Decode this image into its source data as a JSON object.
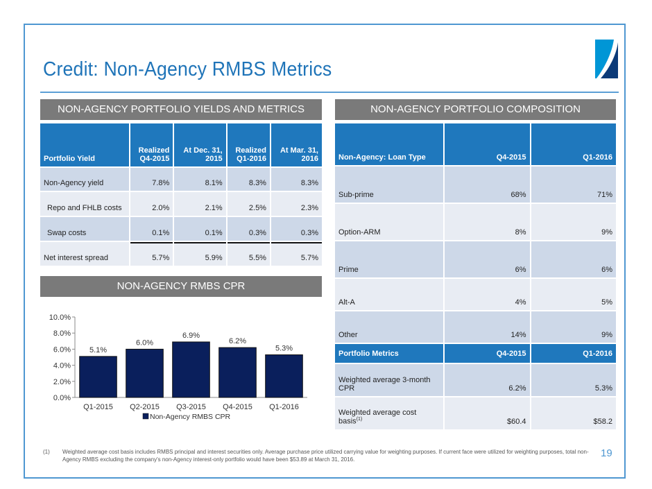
{
  "page": {
    "title": "Credit: Non-Agency RMBS Metrics",
    "page_number": "19",
    "colors": {
      "accent": "#1f74b8",
      "header_blue": "#1f78bd",
      "section_gray": "#7a7a7a",
      "bar_navy": "#0a1f5c",
      "row_dark": "#cdd8e8",
      "row_light": "#e8ecf3"
    }
  },
  "yields": {
    "section_title": "NON-AGENCY PORTFOLIO YIELDS AND METRICS",
    "headers": [
      {
        "line1": "Portfolio Yield",
        "line2": ""
      },
      {
        "line1": "Realized",
        "line2": "Q4-2015"
      },
      {
        "line1": "At Dec. 31,",
        "line2": "2015"
      },
      {
        "line1": "Realized",
        "line2": "Q1-2016"
      },
      {
        "line1": "At Mar. 31,",
        "line2": "2016"
      }
    ],
    "rows": [
      {
        "label": "Non-Agency yield",
        "values": [
          "7.8%",
          "8.1%",
          "8.3%",
          "8.3%"
        ]
      },
      {
        "label": "Repo and FHLB costs",
        "values": [
          "2.0%",
          "2.1%",
          "2.5%",
          "2.3%"
        ]
      },
      {
        "label": "Swap costs",
        "values": [
          "0.1%",
          "0.1%",
          "0.3%",
          "0.3%"
        ]
      },
      {
        "label": "Net interest spread",
        "values": [
          "5.7%",
          "5.9%",
          "5.5%",
          "5.7%"
        ]
      }
    ]
  },
  "composition": {
    "section_title": "NON-AGENCY PORTFOLIO COMPOSITION",
    "headers": [
      "Non-Agency: Loan Type",
      "Q4-2015",
      "Q1-2016"
    ],
    "rows": [
      {
        "label": "Sub-prime",
        "values": [
          "68%",
          "71%"
        ]
      },
      {
        "label": "Option-ARM",
        "values": [
          "8%",
          "9%"
        ]
      },
      {
        "label": "Prime",
        "values": [
          "6%",
          "6%"
        ]
      },
      {
        "label": "Alt-A",
        "values": [
          "4%",
          "5%"
        ]
      },
      {
        "label": "Other",
        "values": [
          "14%",
          "9%"
        ]
      }
    ],
    "metrics_headers": [
      "Portfolio Metrics",
      "Q4-2015",
      "Q1-2016"
    ],
    "metrics_rows": [
      {
        "label": "Weighted average 3-month CPR",
        "sup": "",
        "values": [
          "6.2%",
          "5.3%"
        ]
      },
      {
        "label": "Weighted average cost basis",
        "sup": "(1)",
        "values": [
          "$60.4",
          "$58.2"
        ]
      }
    ]
  },
  "cpr": {
    "section_title": "NON-AGENCY RMBS CPR"
  },
  "chart_data": {
    "type": "bar",
    "title": "NON-AGENCY RMBS CPR",
    "categories": [
      "Q1-2015",
      "Q2-2015",
      "Q3-2015",
      "Q4-2015",
      "Q1-2016"
    ],
    "series": [
      {
        "name": "Non-Agency RMBS CPR",
        "values": [
          5.1,
          6.0,
          6.9,
          6.2,
          5.3
        ],
        "labels": [
          "5.1%",
          "6.0%",
          "6.9%",
          "6.2%",
          "5.3%"
        ],
        "color": "#0a1f5c"
      }
    ],
    "xlabel": "",
    "ylabel": "",
    "ylim": [
      0,
      10
    ],
    "yticks": [
      0,
      2,
      4,
      6,
      8,
      10
    ],
    "ytick_labels": [
      "0.0%",
      "2.0%",
      "4.0%",
      "6.0%",
      "8.0%",
      "10.0%"
    ],
    "grid": false,
    "legend": "bottom"
  },
  "footnote": {
    "number": "(1)",
    "text": "Weighted average cost basis includes RMBS principal and interest securities only.  Average purchase price utilized carrying value for weighting purposes.  If current face were utilized for weighting purposes, total non-Agency RMBS excluding the company's non-Agency interest-only portfolio would have been $53.89 at March 31, 2016."
  }
}
